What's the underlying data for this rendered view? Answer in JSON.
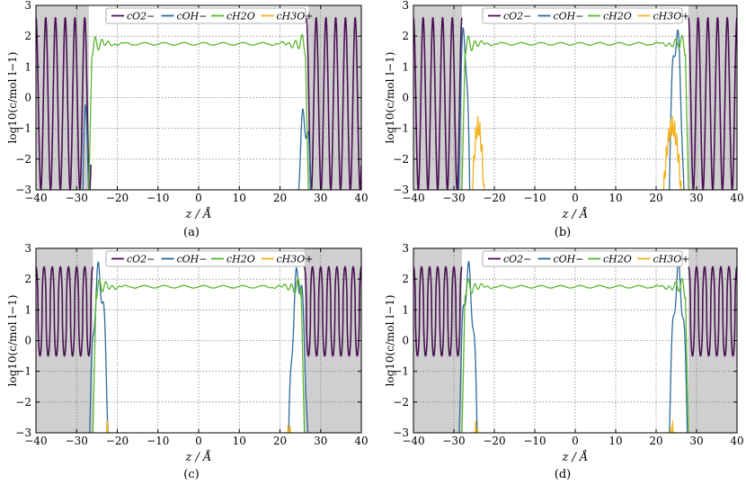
{
  "figure": {
    "panels": [
      {
        "id": "a",
        "caption": "(a)"
      },
      {
        "id": "b",
        "caption": "(b)"
      },
      {
        "id": "c",
        "caption": "(c)"
      },
      {
        "id": "d",
        "caption": "(d)"
      }
    ],
    "colors": {
      "O2": "#4b1055",
      "OH": "#2f6b9a",
      "H2O": "#5ab62f",
      "H3O": "#f2b21a",
      "shade": "#cfcfcf",
      "grid": "#888888"
    }
  },
  "chart_data": [
    {
      "type": "line",
      "panel": "a",
      "xlabel": "z / Å",
      "ylabel": "log10(c/mol l−1)",
      "xlim": [
        -40,
        40
      ],
      "ylim": [
        -3,
        3
      ],
      "xticks": [
        -40,
        -30,
        -20,
        -10,
        0,
        10,
        20,
        30,
        40
      ],
      "yticks": [
        -3,
        -2,
        -1,
        0,
        1,
        2,
        3
      ],
      "grid": true,
      "legend_position": "top-center",
      "legend": [
        "cO2−",
        "cOH−",
        "cH2O",
        "cH3O+"
      ],
      "shaded_x_ranges": [
        [
          -40,
          -27
        ],
        [
          27,
          40
        ]
      ],
      "series": [
        {
          "name": "cO2−",
          "segments": [
            [
              -40,
              -26.5
            ],
            [
              26.5,
              40
            ]
          ],
          "min": -3,
          "max": 2.6,
          "period": 2.4
        },
        {
          "name": "cOH−",
          "segments": [
            [
              -29,
              -26.5
            ],
            [
              23.5,
              28.5
            ]
          ],
          "peak": -0.7
        },
        {
          "name": "cH2O",
          "segments": [
            [
              -27,
              27
            ]
          ],
          "plateau": 1.75
        },
        {
          "name": "cH3O+",
          "segments": []
        }
      ]
    },
    {
      "type": "line",
      "panel": "b",
      "xlabel": "z / Å",
      "ylabel": "log10(c/mol l−1)",
      "xlim": [
        -40,
        40
      ],
      "ylim": [
        -3,
        3
      ],
      "xticks": [
        -40,
        -30,
        -20,
        -10,
        0,
        10,
        20,
        30,
        40
      ],
      "yticks": [
        -3,
        -2,
        -1,
        0,
        1,
        2,
        3
      ],
      "grid": true,
      "legend_position": "top-center",
      "legend": [
        "cO2−",
        "cOH−",
        "cH2O",
        "cH3O+"
      ],
      "shaded_x_ranges": [
        [
          -40,
          -28
        ],
        [
          28,
          40
        ]
      ],
      "series": [
        {
          "name": "cO2−",
          "segments": [
            [
              -40,
              -28
            ],
            [
              28,
              40
            ]
          ],
          "min": -3,
          "max": 2.6,
          "period": 2.4
        },
        {
          "name": "cOH−",
          "segments": [
            [
              -29,
              -26
            ],
            [
              23,
              27
            ]
          ],
          "peak": 2.0
        },
        {
          "name": "cH2O",
          "segments": [
            [
              -28,
              28
            ]
          ],
          "plateau": 1.75
        },
        {
          "name": "cH3O+",
          "segments": [
            [
              -26,
              -22
            ],
            [
              21,
              27
            ]
          ],
          "peak": -0.6
        }
      ]
    },
    {
      "type": "line",
      "panel": "c",
      "xlabel": "z / Å",
      "ylabel": "log10(c/mol l−1)",
      "xlim": [
        -40,
        40
      ],
      "ylim": [
        -3,
        3
      ],
      "xticks": [
        -40,
        -30,
        -20,
        -10,
        0,
        10,
        20,
        30,
        40
      ],
      "yticks": [
        -3,
        -2,
        -1,
        0,
        1,
        2,
        3
      ],
      "grid": true,
      "legend_position": "top-center",
      "legend": [
        "cO2−",
        "cOH−",
        "cH2O",
        "cH3O+"
      ],
      "shaded_x_ranges": [
        [
          -40,
          -26
        ],
        [
          26,
          40
        ]
      ],
      "series": [
        {
          "name": "cO2−",
          "segments": [
            [
              -40,
              -26
            ],
            [
              26,
              40
            ]
          ],
          "min": -0.5,
          "max": 2.4,
          "period": 2.0
        },
        {
          "name": "cOH−",
          "segments": [
            [
              -27,
              -22
            ],
            [
              22,
              27
            ]
          ],
          "peak": 2.1
        },
        {
          "name": "cH2O",
          "segments": [
            [
              -26,
              26
            ]
          ],
          "plateau": 1.75
        },
        {
          "name": "cH3O+",
          "segments": [
            [
              -24,
              -21
            ],
            [
              21,
              23.5
            ]
          ],
          "peak": -2.6
        }
      ]
    },
    {
      "type": "line",
      "panel": "d",
      "xlabel": "z / Å",
      "ylabel": "log10(c/mol l−1)",
      "xlim": [
        -40,
        40
      ],
      "ylim": [
        -3,
        3
      ],
      "xticks": [
        -40,
        -30,
        -20,
        -10,
        0,
        10,
        20,
        30,
        40
      ],
      "yticks": [
        -3,
        -2,
        -1,
        0,
        1,
        2,
        3
      ],
      "grid": true,
      "legend_position": "top-center",
      "legend": [
        "cO2−",
        "cOH−",
        "cH2O",
        "cH3O+"
      ],
      "shaded_x_ranges": [
        [
          -40,
          -28
        ],
        [
          28,
          40
        ]
      ],
      "series": [
        {
          "name": "cO2−",
          "segments": [
            [
              -40,
              -28
            ],
            [
              28,
              40
            ]
          ],
          "min": -0.5,
          "max": 2.4,
          "period": 2.0
        },
        {
          "name": "cOH−",
          "segments": [
            [
              -29,
              -24
            ],
            [
              23,
              28
            ]
          ],
          "peak": 2.1
        },
        {
          "name": "cH2O",
          "segments": [
            [
              -28,
              28
            ]
          ],
          "plateau": 1.75
        },
        {
          "name": "cH3O+",
          "segments": [
            [
              -26,
              -23
            ],
            [
              22,
              26
            ]
          ],
          "peak": -2.6
        }
      ]
    }
  ]
}
